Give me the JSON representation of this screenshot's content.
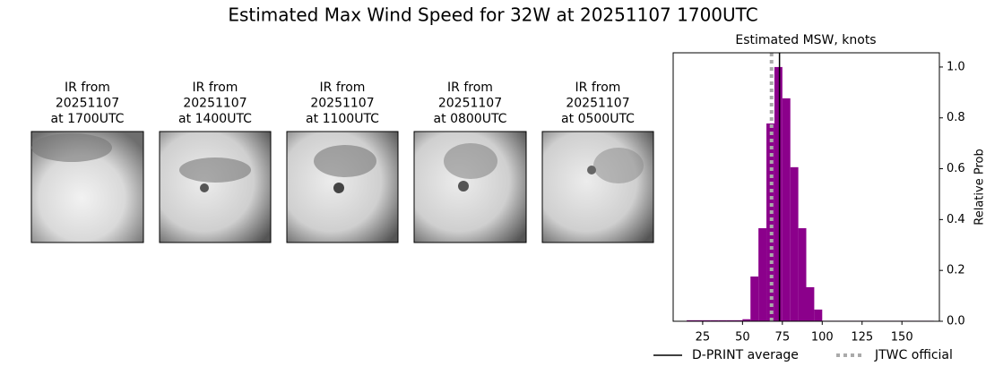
{
  "title": "Estimated Max Wind Speed for 32W at 20251107 1700UTC",
  "panels": [
    {
      "title_lines": [
        "IR from",
        "20251107",
        "at 1700UTC"
      ]
    },
    {
      "title_lines": [
        "IR from",
        "20251107",
        "at 1400UTC"
      ]
    },
    {
      "title_lines": [
        "IR from",
        "20251107",
        "at 1100UTC"
      ]
    },
    {
      "title_lines": [
        "IR from",
        "20251107",
        "at 0800UTC"
      ]
    },
    {
      "title_lines": [
        "IR from",
        "20251107",
        "at 0500UTC"
      ]
    }
  ],
  "chart_data": {
    "type": "histogram",
    "title": "Estimated MSW, knots",
    "y_label": "Relative Prob",
    "y_axis_side": "right",
    "color": "#8b008b",
    "bins": [
      15,
      20,
      25,
      30,
      35,
      40,
      45,
      50,
      55,
      60,
      65,
      70,
      75,
      80,
      85,
      90,
      95,
      100,
      105,
      110,
      115,
      120,
      125,
      130,
      135,
      140,
      145,
      150,
      155,
      160,
      165,
      170
    ],
    "values": [
      0.004,
      0.004,
      0.004,
      0.004,
      0.004,
      0.004,
      0.004,
      0.008,
      0.176,
      0.366,
      0.778,
      1.0,
      0.877,
      0.606,
      0.366,
      0.134,
      0.046,
      0.002,
      0.002,
      0.002,
      0.002,
      0.002,
      0.002,
      0.002,
      0.002,
      0.002,
      0.002,
      0.002,
      0.002,
      0.002,
      0.002
    ],
    "xlim": [
      6.5,
      173.5
    ],
    "ylim": [
      0,
      1.056
    ],
    "xticks": [
      25,
      50,
      75,
      100,
      125,
      150
    ],
    "yticks": [
      {
        "value": 0,
        "label": "0.0"
      },
      0.2,
      0.4,
      0.6,
      0.8,
      {
        "value": 1,
        "label": "1.0"
      }
    ],
    "lines": [
      {
        "name": "D-PRINT average",
        "value": 73.2,
        "color": "#000000",
        "style": "solid"
      },
      {
        "name": "JTWC official",
        "value": 68.2,
        "color": "#aaaaaa",
        "style": "dotted"
      }
    ]
  }
}
